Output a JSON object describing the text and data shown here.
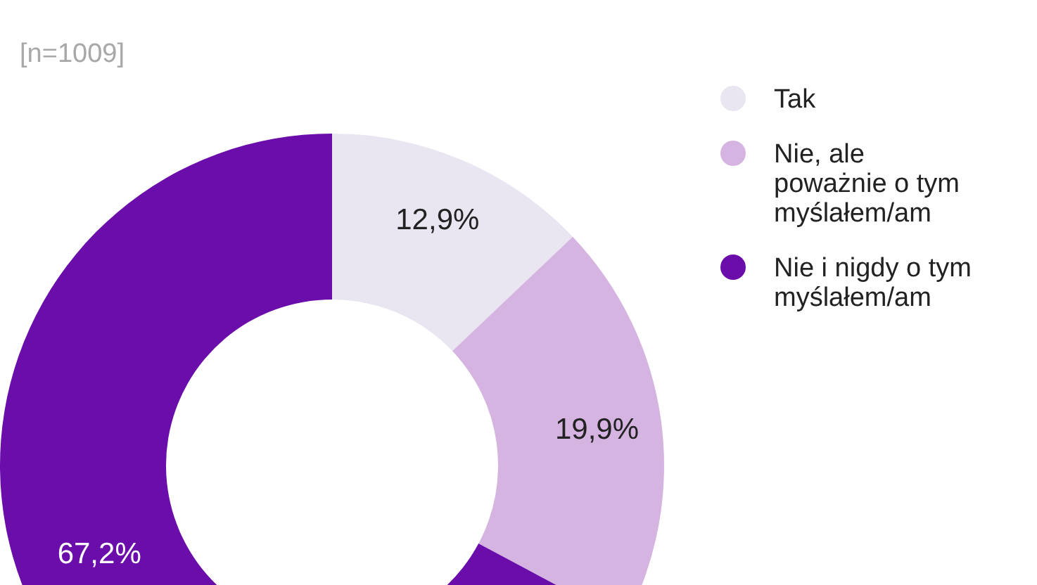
{
  "chart_data": {
    "type": "donut",
    "subtitle": "[n=1009]",
    "categories": [
      "Tak",
      "Nie, ale poważnie o tym myślałem/am",
      "Nie i nigdy o tym myślałem/am"
    ],
    "values": [
      12.9,
      19.9,
      67.2
    ],
    "colors": [
      "#e9e5f1",
      "#d6b4e2",
      "#6a0dab"
    ],
    "value_labels": [
      "12,9%",
      "19,9%",
      "67,2%"
    ],
    "legend": "top right"
  }
}
